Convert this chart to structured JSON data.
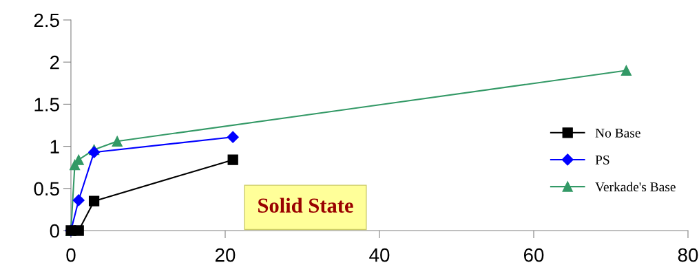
{
  "chart_data": {
    "type": "line",
    "series": [
      {
        "name": "No Base",
        "color": "#000000",
        "marker": "square",
        "x": [
          0,
          1,
          3,
          21
        ],
        "values": [
          0,
          0,
          0.35,
          0.84
        ]
      },
      {
        "name": "PS",
        "color": "#0000ff",
        "marker": "diamond",
        "x": [
          0,
          1,
          3,
          21
        ],
        "values": [
          0,
          0.36,
          0.93,
          1.11
        ]
      },
      {
        "name": "Verkade's Base",
        "color": "#339966",
        "marker": "triangle",
        "x": [
          0,
          0.5,
          1,
          3,
          6,
          72
        ],
        "values": [
          0,
          0.78,
          0.84,
          0.96,
          1.06,
          1.9
        ]
      }
    ],
    "xlim": [
      0,
      80
    ],
    "xticks": [
      0,
      20,
      40,
      60,
      80
    ],
    "ylim": [
      0,
      2.5
    ],
    "yticks": [
      0,
      0.5,
      1,
      1.5,
      2,
      2.5
    ],
    "grid": false,
    "legend": "right",
    "line_style": "solid",
    "annotations": [
      "Solid State"
    ]
  }
}
